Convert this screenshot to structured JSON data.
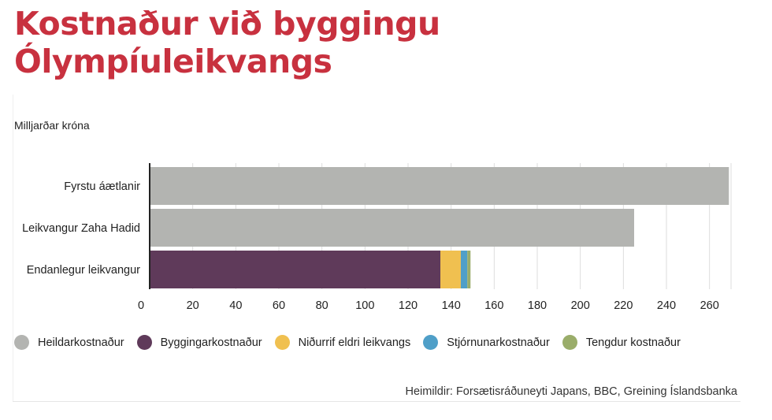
{
  "title_line1": "Kostnaður við byggingu",
  "title_line2": "Ólympíuleikvangs",
  "unit_label": "Milljarðar króna",
  "source": "Heimildir:  Forsætisráðuneyti Japans, BBC, Greining Íslandsbanka",
  "colors": {
    "total": "#b3b4b1",
    "construction": "#5f3a5a",
    "demolition": "#f0c050",
    "management": "#4f9fc8",
    "related": "#9aad6a",
    "grid": "#dddddd",
    "axis": "#222222"
  },
  "legend": [
    {
      "label": "Heildarkostnaður",
      "color": "#b3b4b1"
    },
    {
      "label": "Byggingarkostnaður",
      "color": "#5f3a5a"
    },
    {
      "label": "Niðurrif eldri leikvangs",
      "color": "#f0c050"
    },
    {
      "label": "Stjórnunarkostnaður",
      "color": "#4f9fc8"
    },
    {
      "label": "Tengdur kostnaður",
      "color": "#9aad6a"
    }
  ],
  "chart_data": {
    "type": "bar",
    "orientation": "horizontal",
    "stacked": true,
    "categories": [
      "Fyrstu áætlanir",
      "Leikvangur Zaha Hadid",
      "Endanlegur leikvangur"
    ],
    "series": [
      {
        "name": "Heildarkostnaður",
        "values": [
          269,
          225,
          0
        ]
      },
      {
        "name": "Byggingarkostnaður",
        "values": [
          0,
          0,
          135
        ]
      },
      {
        "name": "Niðurrif eldri leikvangs",
        "values": [
          0,
          0,
          9.5
        ]
      },
      {
        "name": "Stjórnunarkostnaður",
        "values": [
          0,
          0,
          3
        ]
      },
      {
        "name": "Tengdur kostnaður",
        "values": [
          0,
          0,
          1.5
        ]
      }
    ],
    "xlim": [
      0,
      270
    ],
    "xticks": [
      0,
      20,
      40,
      60,
      80,
      100,
      120,
      140,
      160,
      180,
      200,
      220,
      240,
      260
    ],
    "grid": true,
    "legend_position": "bottom"
  }
}
